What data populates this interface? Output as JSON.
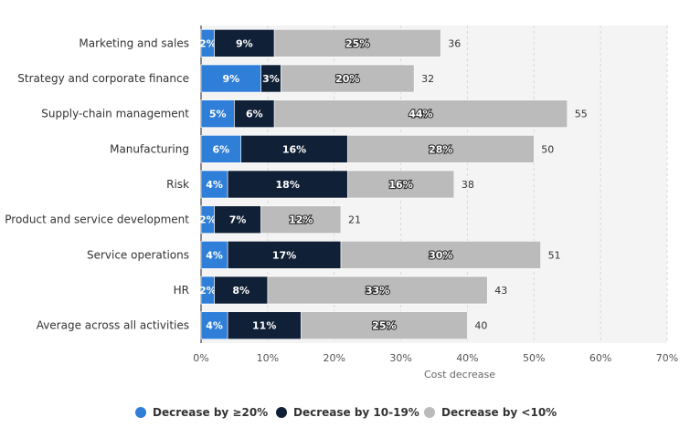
{
  "chart_data": {
    "type": "bar",
    "orientation": "horizontal",
    "stacked": true,
    "categories": [
      "Marketing and sales",
      "Strategy and corporate finance",
      "Supply-chain management",
      "Manufacturing",
      "Risk",
      "Product and service development",
      "Service operations",
      "HR",
      "Average across all activities"
    ],
    "series": [
      {
        "name": "Decrease by ≥20%",
        "color": "#2f7ed8",
        "values": [
          2,
          9,
          5,
          6,
          4,
          2,
          4,
          2,
          4
        ]
      },
      {
        "name": "Decrease by 10-19%",
        "color": "#102036",
        "values": [
          9,
          3,
          6,
          16,
          18,
          7,
          17,
          8,
          11
        ]
      },
      {
        "name": "Decrease by <10%",
        "color": "#bbbbbb",
        "values": [
          25,
          20,
          44,
          28,
          16,
          12,
          30,
          33,
          25
        ]
      }
    ],
    "totals": [
      36,
      32,
      55,
      50,
      38,
      21,
      51,
      43,
      40
    ],
    "xlabel": "Cost decrease",
    "xlim": [
      0,
      70
    ],
    "xticks": [
      "0%",
      "10%",
      "20%",
      "30%",
      "40%",
      "50%",
      "60%",
      "70%"
    ],
    "grid": true,
    "legend_position": "bottom"
  }
}
